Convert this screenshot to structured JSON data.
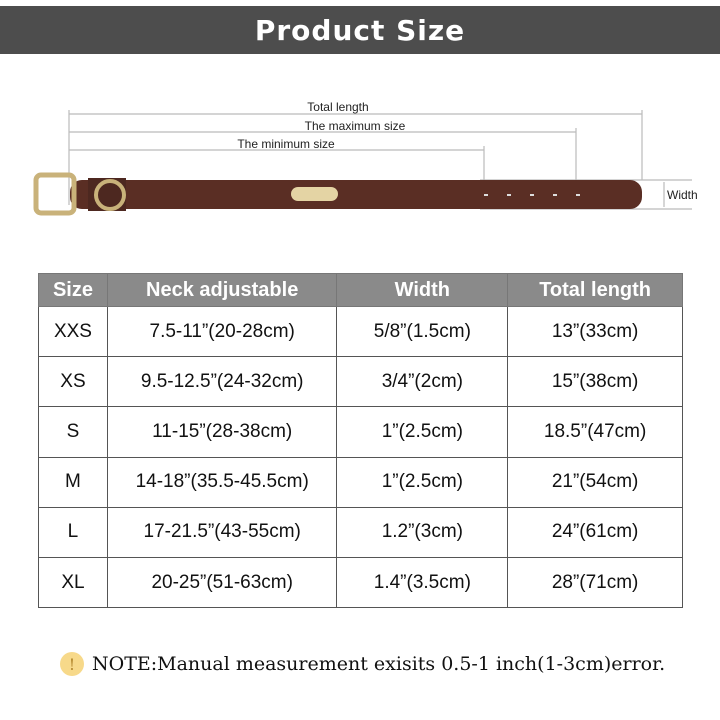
{
  "title": "Product Size",
  "diagram": {
    "total_length": "Total length",
    "maximum_size": "The maximum size",
    "minimum_size": "The minimum size",
    "width": "Width"
  },
  "table": {
    "headers": [
      "Size",
      "Neck adjustable",
      "Width",
      "Total length"
    ],
    "rows": [
      [
        "XXS",
        "7.5-11”(20-28cm)",
        "5/8”(1.5cm)",
        "13”(33cm)"
      ],
      [
        "XS",
        "9.5-12.5”(24-32cm)",
        "3/4”(2cm)",
        "15”(38cm)"
      ],
      [
        "S",
        "11-15”(28-38cm)",
        "1”(2.5cm)",
        "18.5”(47cm)"
      ],
      [
        "M",
        "14-18”(35.5-45.5cm)",
        "1”(2.5cm)",
        "21”(54cm)"
      ],
      [
        "L",
        "17-21.5”(43-55cm)",
        "1.2”(3cm)",
        "24”(61cm)"
      ],
      [
        "XL",
        "20-25”(51-63cm)",
        "1.4”(3.5cm)",
        "28”(71cm)"
      ]
    ]
  },
  "note": {
    "icon": "exclamation-icon",
    "text": "NOTE:Manual measurement exisits 0.5-1 inch(1-3cm)error."
  },
  "colors": {
    "banner": "#4d4d4d",
    "header": "#8a8a8a",
    "leather": "#5a2e24",
    "brass": "#c9b27a"
  }
}
